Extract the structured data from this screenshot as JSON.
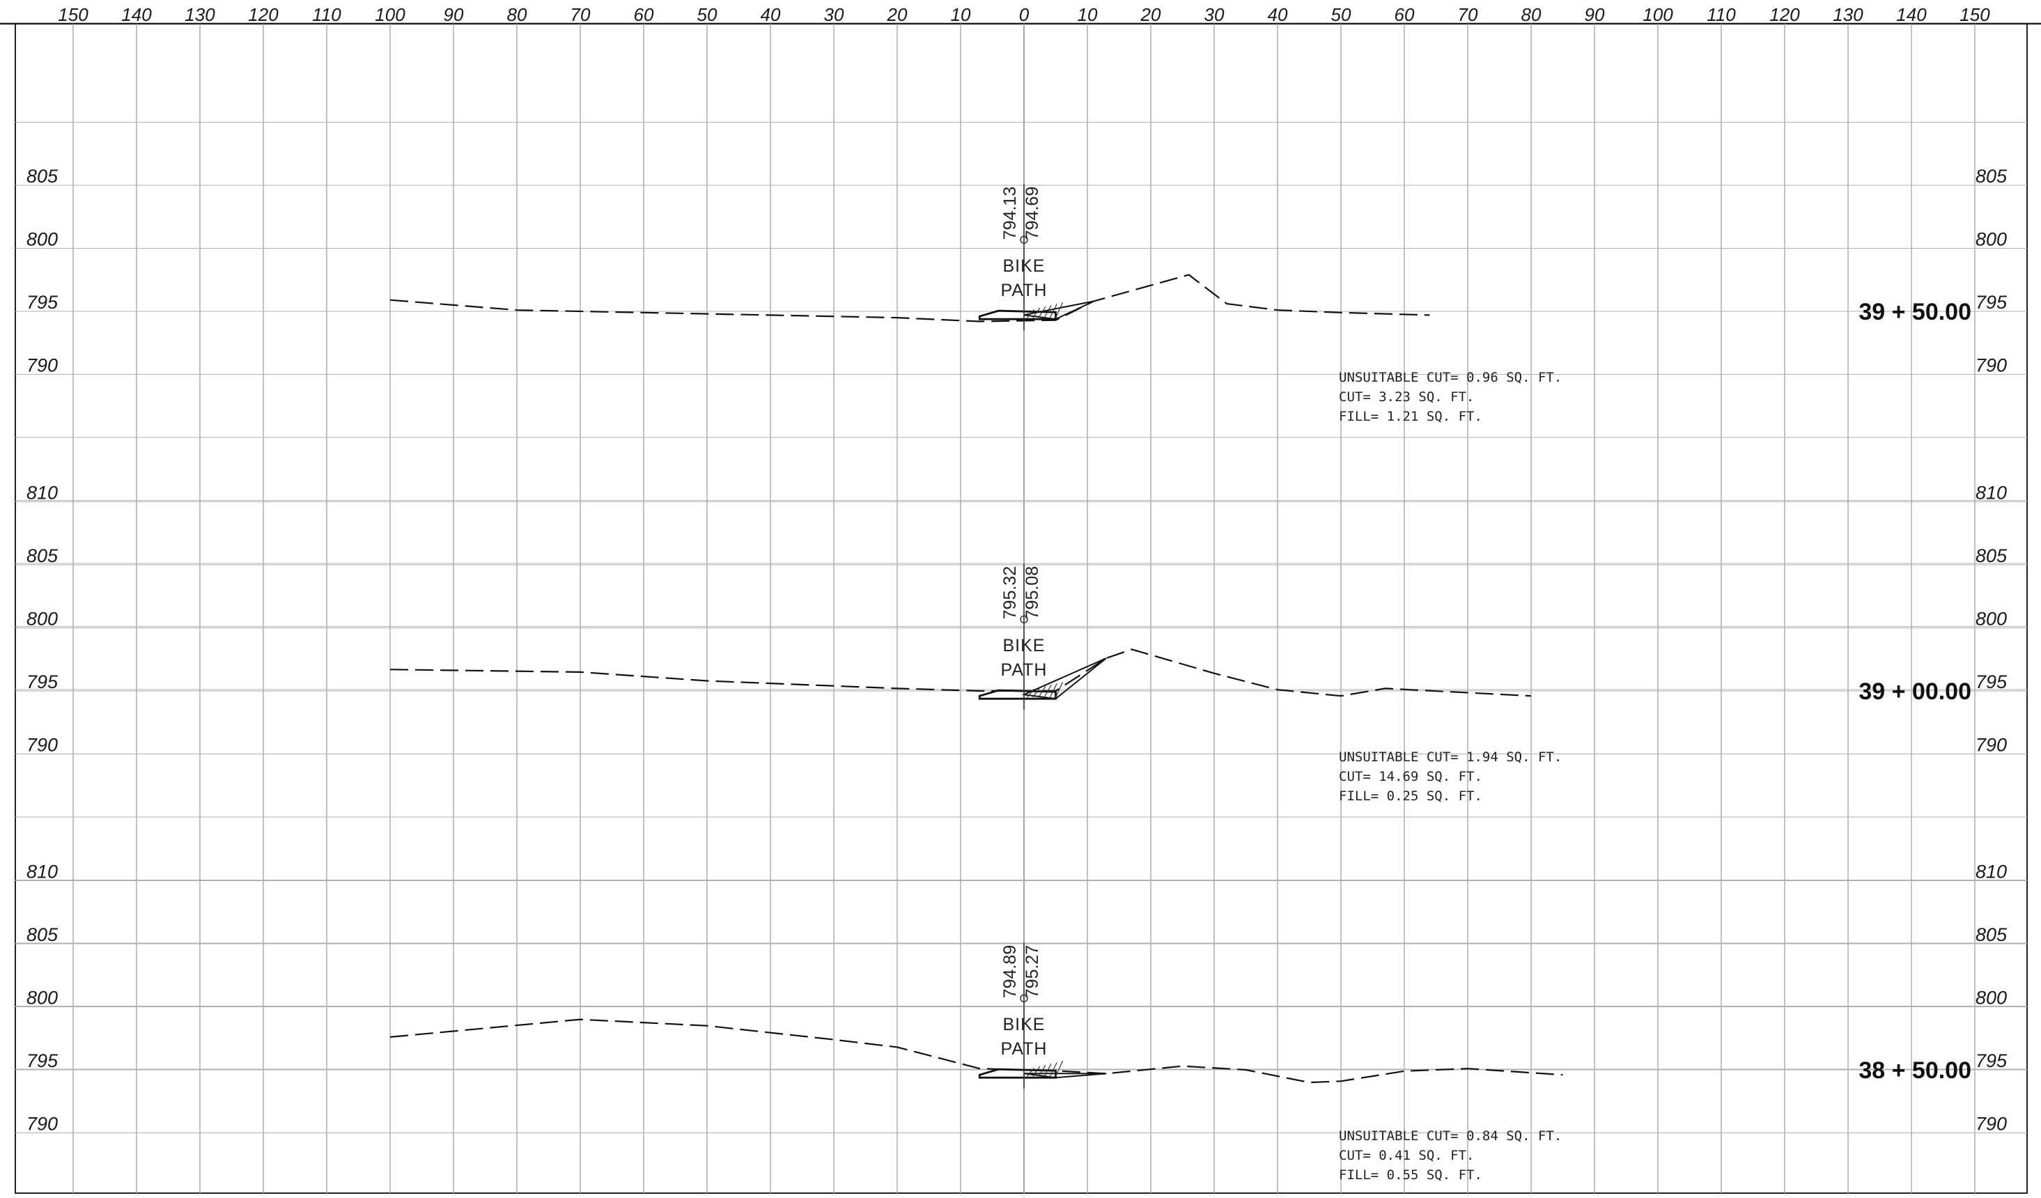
{
  "top_scale": [
    150,
    140,
    130,
    120,
    110,
    100,
    90,
    80,
    70,
    60,
    50,
    40,
    30,
    20,
    10,
    0,
    10,
    20,
    30,
    40,
    50,
    60,
    70,
    80,
    90,
    100,
    110,
    120,
    130,
    140,
    150
  ],
  "sections": [
    {
      "station": "39 + 50.00",
      "elevations_left": [
        "805",
        "800",
        "795",
        "790"
      ],
      "elevations_right": [
        "805",
        "800",
        "795",
        "790"
      ],
      "elev_values": [
        805,
        800,
        795,
        790
      ],
      "label_left": "794.13",
      "label_right": "794.69",
      "bike_line1": "BIKE",
      "bike_line2": "PATH",
      "quantities": [
        "UNSUITABLE CUT= 0.96 SQ. FT.",
        "CUT= 3.23 SQ. FT.",
        "FILL= 1.21 SQ. FT."
      ],
      "ground": [
        [
          -100,
          795.9
        ],
        [
          -80,
          795.1
        ],
        [
          -60,
          794.9
        ],
        [
          -40,
          794.7
        ],
        [
          -20,
          794.5
        ],
        [
          -7,
          794.2
        ],
        [
          5,
          794.3
        ],
        [
          11,
          795.8
        ],
        [
          26,
          797.9
        ],
        [
          32,
          795.6
        ],
        [
          40,
          795.1
        ],
        [
          50,
          794.9
        ],
        [
          64,
          794.7
        ]
      ]
    },
    {
      "station": "39 + 00.00",
      "elevations_left": [
        "810",
        "805",
        "800",
        "795",
        "790"
      ],
      "elevations_right": [
        "810",
        "805",
        "800",
        "795",
        "790"
      ],
      "elev_values": [
        810,
        805,
        800,
        795,
        790
      ],
      "label_left": "795.32",
      "label_right": "795.08",
      "bike_line1": "BIKE",
      "bike_line2": "PATH",
      "quantities": [
        "UNSUITABLE CUT= 1.94 SQ. FT.",
        "CUT= 14.69 SQ. FT.",
        "FILL= 0.25 SQ. FT."
      ],
      "ground": [
        [
          -100,
          796.7
        ],
        [
          -70,
          796.5
        ],
        [
          -50,
          795.8
        ],
        [
          -20,
          795.2
        ],
        [
          -7,
          795.0
        ],
        [
          5,
          795.0
        ],
        [
          13,
          797.6
        ],
        [
          17,
          798.3
        ],
        [
          30,
          796.4
        ],
        [
          40,
          795.1
        ],
        [
          50,
          794.6
        ],
        [
          57,
          795.2
        ],
        [
          80,
          794.6
        ]
      ]
    },
    {
      "station": "38 + 50.00",
      "elevations_left": [
        "810",
        "805",
        "800",
        "795",
        "790"
      ],
      "elevations_right": [
        "810",
        "805",
        "800",
        "795",
        "790"
      ],
      "elev_values": [
        810,
        805,
        800,
        795,
        790
      ],
      "label_left": "794.89",
      "label_right": "795.27",
      "bike_line1": "BIKE",
      "bike_line2": "PATH",
      "quantities": [
        "UNSUITABLE CUT= 0.84 SQ. FT.",
        "CUT= 0.41 SQ. FT.",
        "FILL= 0.55 SQ. FT."
      ],
      "ground": [
        [
          -100,
          797.6
        ],
        [
          -70,
          799.0
        ],
        [
          -50,
          798.5
        ],
        [
          -30,
          797.4
        ],
        [
          -20,
          796.8
        ],
        [
          -7,
          795.1
        ],
        [
          6,
          794.9
        ],
        [
          13,
          794.7
        ],
        [
          25,
          795.3
        ],
        [
          35,
          795.0
        ],
        [
          45,
          794.0
        ],
        [
          50,
          794.1
        ],
        [
          60,
          794.9
        ],
        [
          70,
          795.1
        ],
        [
          85,
          794.6
        ]
      ]
    }
  ]
}
